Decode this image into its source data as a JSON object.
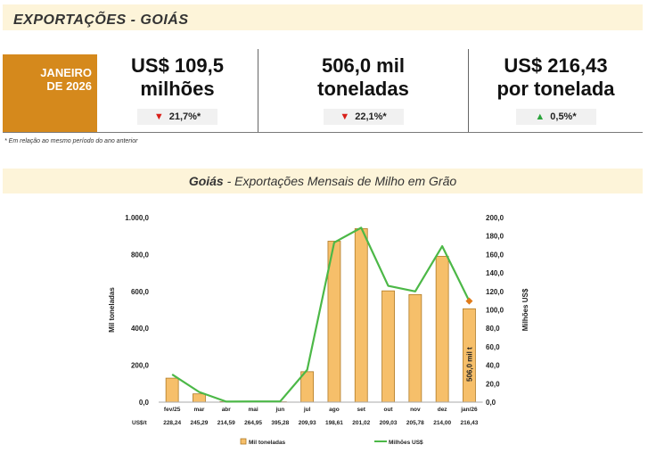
{
  "header": {
    "title": "EXPORTAÇÕES - GOIÁS"
  },
  "period": {
    "line1": "JANEIRO",
    "line2": "DE 2026"
  },
  "kpis": [
    {
      "line1": "US$ 109,5",
      "line2": "milhões",
      "change": "21,7%*",
      "direction": "down"
    },
    {
      "line1": "506,0 mil",
      "line2": "toneladas",
      "change": "22,1%*",
      "direction": "down"
    },
    {
      "line1": "US$ 216,43",
      "line2": "por tonelada",
      "change": "0,5%*",
      "direction": "up"
    }
  ],
  "footnote": "* Em relação ao mesmo período do ano anterior",
  "chart_title": {
    "bold": "Goiás",
    "rest": " - Exportações Mensais de Milho em Grão"
  },
  "colors": {
    "bar": "#f6bf6a",
    "bar_border": "#b07a25",
    "line": "#4cb847",
    "accent": "#d5891c",
    "last_marker": "#e07b1a"
  },
  "chart_data": {
    "type": "bar",
    "categories": [
      "fev/25",
      "mar",
      "abr",
      "mai",
      "jun",
      "jul",
      "ago",
      "set",
      "out",
      "nov",
      "dez",
      "jan/26"
    ],
    "series": [
      {
        "name": "Mil toneladas",
        "type": "bar",
        "axis": "left",
        "values": [
          130,
          45,
          3,
          3,
          2,
          165,
          872,
          940,
          603,
          583,
          790,
          506
        ]
      },
      {
        "name": "Milhões US$",
        "type": "line",
        "axis": "right",
        "values": [
          30,
          11,
          0.6,
          0.8,
          0.8,
          35,
          173,
          189,
          126,
          120,
          169,
          109.5
        ]
      }
    ],
    "price_row_label": "US$/t",
    "price_row": [
      "228,24",
      "245,29",
      "214,59",
      "264,95",
      "395,28",
      "209,93",
      "198,61",
      "201,02",
      "209,03",
      "205,78",
      "214,00",
      "216,43"
    ],
    "ylabel_left": "Mil toneladas",
    "ylabel_right": "Milhões US$",
    "ylim_left": [
      0,
      1000
    ],
    "ylim_right": [
      0,
      200
    ],
    "yticks_left": [
      "0,0",
      "200,0",
      "400,0",
      "600,0",
      "800,0",
      "1.000,0"
    ],
    "yticks_right": [
      "0,0",
      "20,0",
      "40,0",
      "60,0",
      "80,0",
      "100,0",
      "120,0",
      "140,0",
      "160,0",
      "180,0",
      "200,0"
    ],
    "annotation": "506,0 mil t",
    "legend": [
      "Mil toneladas",
      "Milhões US$"
    ],
    "grid": false,
    "legend_position": "bottom"
  }
}
